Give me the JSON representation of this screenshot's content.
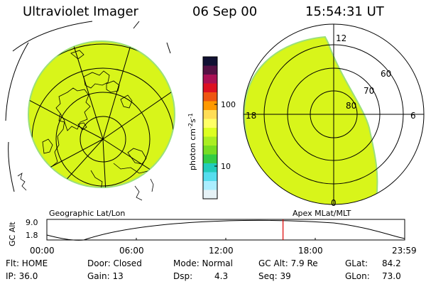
{
  "header": {
    "title": "Ultraviolet Imager",
    "date": "06 Sep 00",
    "time": "15:54:31 UT"
  },
  "geo_panel": {
    "caption": "Geographic Lat/Lon"
  },
  "apex_panel": {
    "caption": "Apex MLat/MLT",
    "mlt_labels": [
      "12",
      "18",
      "6",
      "0"
    ],
    "mlat_labels": [
      "60",
      "70",
      "80"
    ]
  },
  "colorbar": {
    "unit_label": "photon cm",
    "unit_exp1": "-2",
    "unit_mid": "s",
    "unit_exp2": "-1",
    "tick_labels": [
      "100",
      "10"
    ],
    "colors": [
      "#111133",
      "#551144",
      "#aa1155",
      "#dd1122",
      "#ee5511",
      "#ff9900",
      "#ffdd55",
      "#ffff66",
      "#ddff22",
      "#aaee22",
      "#77dd22",
      "#33cc44",
      "#22ccbb",
      "#55ddee",
      "#aaeeff",
      "#e6f2f6"
    ]
  },
  "orbit": {
    "axis_label": "GC Alt",
    "y_labels": [
      "9.0",
      "1.8"
    ],
    "x_labels": [
      "00:00",
      "06:00",
      "12:00",
      "18:00",
      "23:59"
    ],
    "current_time_fraction": 0.66,
    "marker_color": "#dd0000"
  },
  "info": {
    "flt": "Flt: HOME",
    "ip": "IP: 36.0",
    "door": "Door: Closed",
    "gain": "Gain: 13",
    "mode": "Mode: Normal",
    "dsp_label": "Dsp:",
    "dsp_value": "4.3",
    "gcalt": "GC Alt: 7.9 Re",
    "seq": "Seq: 39",
    "glat_label": "GLat:",
    "glat_value": "84.2",
    "glon_label": "GLon:",
    "glon_value": "73.0"
  },
  "colors": {
    "fill": "#d8f51a",
    "fill_edge": "#9be07a"
  }
}
